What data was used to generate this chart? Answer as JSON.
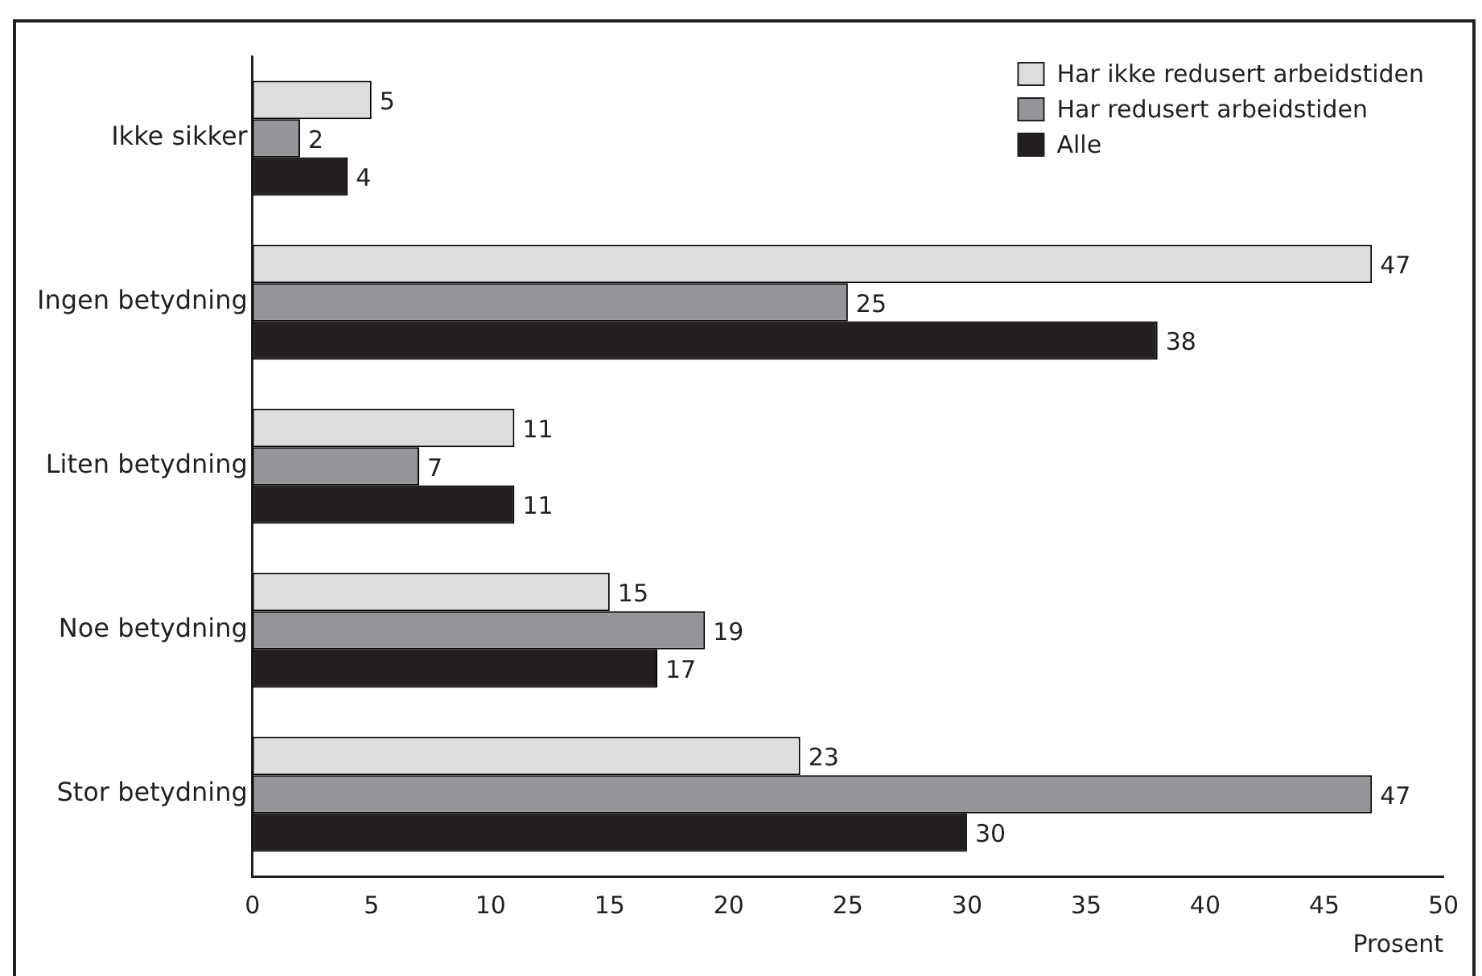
{
  "chart_data": {
    "type": "bar",
    "orientation": "horizontal",
    "xlabel": "Prosent",
    "categories": [
      "Ikke sikker",
      "Ingen betydning",
      "Liten betydning",
      "Noe betydning",
      "Stor betydning"
    ],
    "series": [
      {
        "name": "Har ikke redusert arbeidstiden",
        "color": "#dcdddf",
        "values": [
          5,
          47,
          11,
          15,
          23
        ]
      },
      {
        "name": "Har redusert arbeidstiden",
        "color": "#939598",
        "values": [
          2,
          25,
          7,
          19,
          47
        ]
      },
      {
        "name": "Alle",
        "color": "#231f20",
        "values": [
          4,
          38,
          11,
          17,
          30
        ]
      }
    ],
    "xlim": [
      0,
      50
    ],
    "xticks": [
      0,
      5,
      10,
      15,
      20,
      25,
      30,
      35,
      40,
      45,
      50
    ],
    "data_labels": true,
    "legend": "top right",
    "grid": false
  }
}
